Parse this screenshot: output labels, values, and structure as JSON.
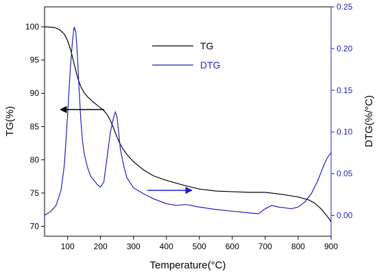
{
  "chart_data": {
    "type": "line",
    "xlabel": "Temperature(°C)",
    "ylabel_left": "TG(%)",
    "ylabel_right": "DTG(%/°C)",
    "xlim": [
      30,
      900
    ],
    "ylim_left": [
      68.5,
      103
    ],
    "ylim_right": [
      -0.025,
      0.25
    ],
    "xticks": [
      100,
      200,
      300,
      400,
      500,
      600,
      700,
      800,
      900
    ],
    "yticks_left": [
      70,
      75,
      80,
      85,
      90,
      95,
      100
    ],
    "yticks_right": [
      "0.00",
      "0.05",
      "0.10",
      "0.15",
      "0.20",
      "0.25"
    ],
    "grid": false,
    "legend_position": "top-center",
    "series": [
      {
        "name": "TG",
        "axis": "left",
        "color": "#000000",
        "x": [
          30,
          60,
          75,
          90,
          100,
          110,
          120,
          130,
          140,
          150,
          160,
          175,
          190,
          200,
          210,
          220,
          230,
          240,
          250,
          260,
          270,
          280,
          300,
          330,
          360,
          400,
          450,
          500,
          550,
          600,
          650,
          700,
          750,
          800,
          830,
          850,
          870,
          890,
          900
        ],
        "values": [
          100,
          99.9,
          99.6,
          98.9,
          97.9,
          96.4,
          94.4,
          92.4,
          91.0,
          90.1,
          89.5,
          88.8,
          88.2,
          87.8,
          87.4,
          86.8,
          85.9,
          84.7,
          83.4,
          82.3,
          81.5,
          80.8,
          79.7,
          78.5,
          77.6,
          76.9,
          76.2,
          75.6,
          75.3,
          75.2,
          75.1,
          75.1,
          74.8,
          74.4,
          74.0,
          73.5,
          72.6,
          71.4,
          70.7
        ]
      },
      {
        "name": "DTG",
        "axis": "right",
        "color": "#1f1fbf",
        "x": [
          30,
          50,
          65,
          80,
          90,
          100,
          108,
          115,
          120,
          125,
          130,
          135,
          140,
          145,
          150,
          160,
          170,
          180,
          190,
          200,
          210,
          220,
          230,
          240,
          245,
          250,
          255,
          260,
          270,
          280,
          300,
          330,
          360,
          400,
          430,
          460,
          500,
          550,
          600,
          650,
          680,
          700,
          720,
          740,
          760,
          780,
          800,
          820,
          840,
          860,
          880,
          890,
          900
        ],
        "values": [
          0.0,
          0.005,
          0.012,
          0.03,
          0.06,
          0.12,
          0.175,
          0.21,
          0.226,
          0.22,
          0.19,
          0.15,
          0.115,
          0.09,
          0.075,
          0.058,
          0.047,
          0.042,
          0.037,
          0.034,
          0.04,
          0.07,
          0.1,
          0.118,
          0.124,
          0.118,
          0.1,
          0.08,
          0.06,
          0.045,
          0.033,
          0.026,
          0.02,
          0.014,
          0.012,
          0.013,
          0.01,
          0.007,
          0.005,
          0.003,
          0.002,
          0.008,
          0.012,
          0.01,
          0.009,
          0.008,
          0.01,
          0.016,
          0.026,
          0.042,
          0.062,
          0.07,
          0.075
        ]
      }
    ]
  }
}
